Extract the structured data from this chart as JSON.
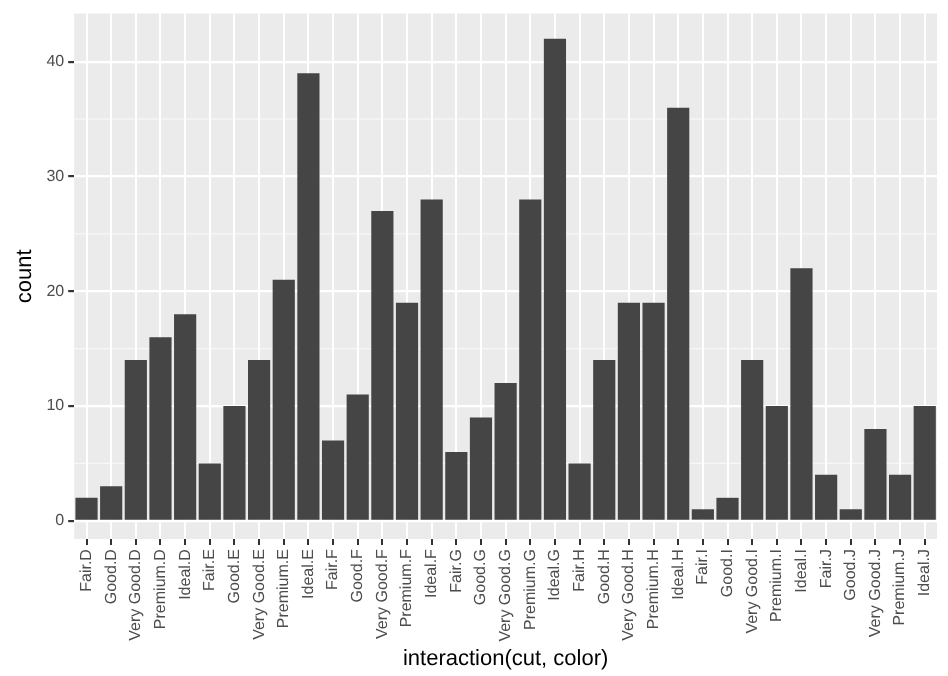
{
  "chart_data": {
    "type": "bar",
    "xlabel": "interaction(cut, color)",
    "ylabel": "count",
    "categories": [
      "Fair.D",
      "Good.D",
      "Very Good.D",
      "Premium.D",
      "Ideal.D",
      "Fair.E",
      "Good.E",
      "Very Good.E",
      "Premium.E",
      "Ideal.E",
      "Fair.F",
      "Good.F",
      "Very Good.F",
      "Premium.F",
      "Ideal.F",
      "Fair.G",
      "Good.G",
      "Very Good.G",
      "Premium.G",
      "Ideal.G",
      "Fair.H",
      "Good.H",
      "Very Good.H",
      "Premium.H",
      "Ideal.H",
      "Fair.I",
      "Good.I",
      "Very Good.I",
      "Premium.I",
      "Ideal.I",
      "Fair.J",
      "Good.J",
      "Very Good.J",
      "Premium.J",
      "Ideal.J"
    ],
    "values": [
      2,
      3,
      14,
      16,
      18,
      5,
      10,
      14,
      21,
      39,
      7,
      11,
      27,
      19,
      28,
      6,
      9,
      12,
      28,
      42,
      5,
      14,
      19,
      19,
      36,
      1,
      2,
      14,
      10,
      22,
      4,
      1,
      8,
      4,
      10
    ],
    "color": "#454545",
    "ylim": [
      -1.6,
      44.2
    ],
    "yticks": [
      0,
      10,
      20,
      30,
      40
    ],
    "grid": true,
    "legend": false
  }
}
